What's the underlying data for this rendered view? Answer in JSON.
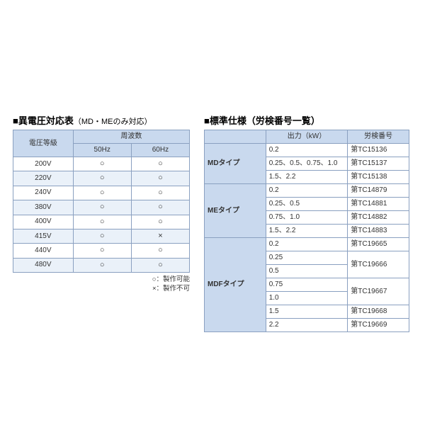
{
  "left": {
    "title_marker": "■",
    "title": "異電圧対応表",
    "subtitle": "（MD・MEのみ対応）",
    "header_voltage": "電圧等級",
    "header_freq": "周波数",
    "header_50": "50Hz",
    "header_60": "60Hz",
    "sym_ok": "○",
    "sym_ng": "×",
    "rows": [
      {
        "v": "200V",
        "f50": "○",
        "f60": "○",
        "alt": false
      },
      {
        "v": "220V",
        "f50": "○",
        "f60": "○",
        "alt": true
      },
      {
        "v": "240V",
        "f50": "○",
        "f60": "○",
        "alt": false
      },
      {
        "v": "380V",
        "f50": "○",
        "f60": "○",
        "alt": true
      },
      {
        "v": "400V",
        "f50": "○",
        "f60": "○",
        "alt": false
      },
      {
        "v": "415V",
        "f50": "○",
        "f60": "×",
        "alt": true
      },
      {
        "v": "440V",
        "f50": "○",
        "f60": "○",
        "alt": false
      },
      {
        "v": "480V",
        "f50": "○",
        "f60": "○",
        "alt": true
      }
    ],
    "legend_ok": "○：製作可能",
    "legend_ng": "×：製作不可"
  },
  "right": {
    "title_marker": "■",
    "title": "標準仕様（労検番号一覧）",
    "header_output": "出力（kW）",
    "header_number": "労検番号",
    "groups": [
      {
        "type": "MDタイプ",
        "rows": [
          {
            "out": "0.2",
            "num": "第TC15136"
          },
          {
            "out": "0.25、0.5、0.75、1.0",
            "num": "第TC15137"
          },
          {
            "out": "1.5、2.2",
            "num": "第TC15138"
          }
        ]
      },
      {
        "type": "MEタイプ",
        "rows": [
          {
            "out": "0.2",
            "num": "第TC14879"
          },
          {
            "out": "0.25、0.5",
            "num": "第TC14881"
          },
          {
            "out": "0.75、1.0",
            "num": "第TC14882"
          },
          {
            "out": "1.5、2.2",
            "num": "第TC14883"
          }
        ]
      },
      {
        "type": "MDFタイプ",
        "rows": [
          {
            "out": "0.2",
            "num": "第TC19665",
            "numspan": 1
          },
          {
            "out": "0.25",
            "num": "第TC19666",
            "numspan": 2
          },
          {
            "out": "0.5"
          },
          {
            "out": "0.75",
            "num": "第TC19667",
            "numspan": 2
          },
          {
            "out": "1.0"
          },
          {
            "out": "1.5",
            "num": "第TC19668",
            "numspan": 1
          },
          {
            "out": "2.2",
            "num": "第TC19669",
            "numspan": 1
          }
        ]
      }
    ]
  },
  "colors": {
    "border": "#8aa0c0",
    "header_bg": "#c9d9ee",
    "row_alt_bg": "#eaf1f9"
  }
}
